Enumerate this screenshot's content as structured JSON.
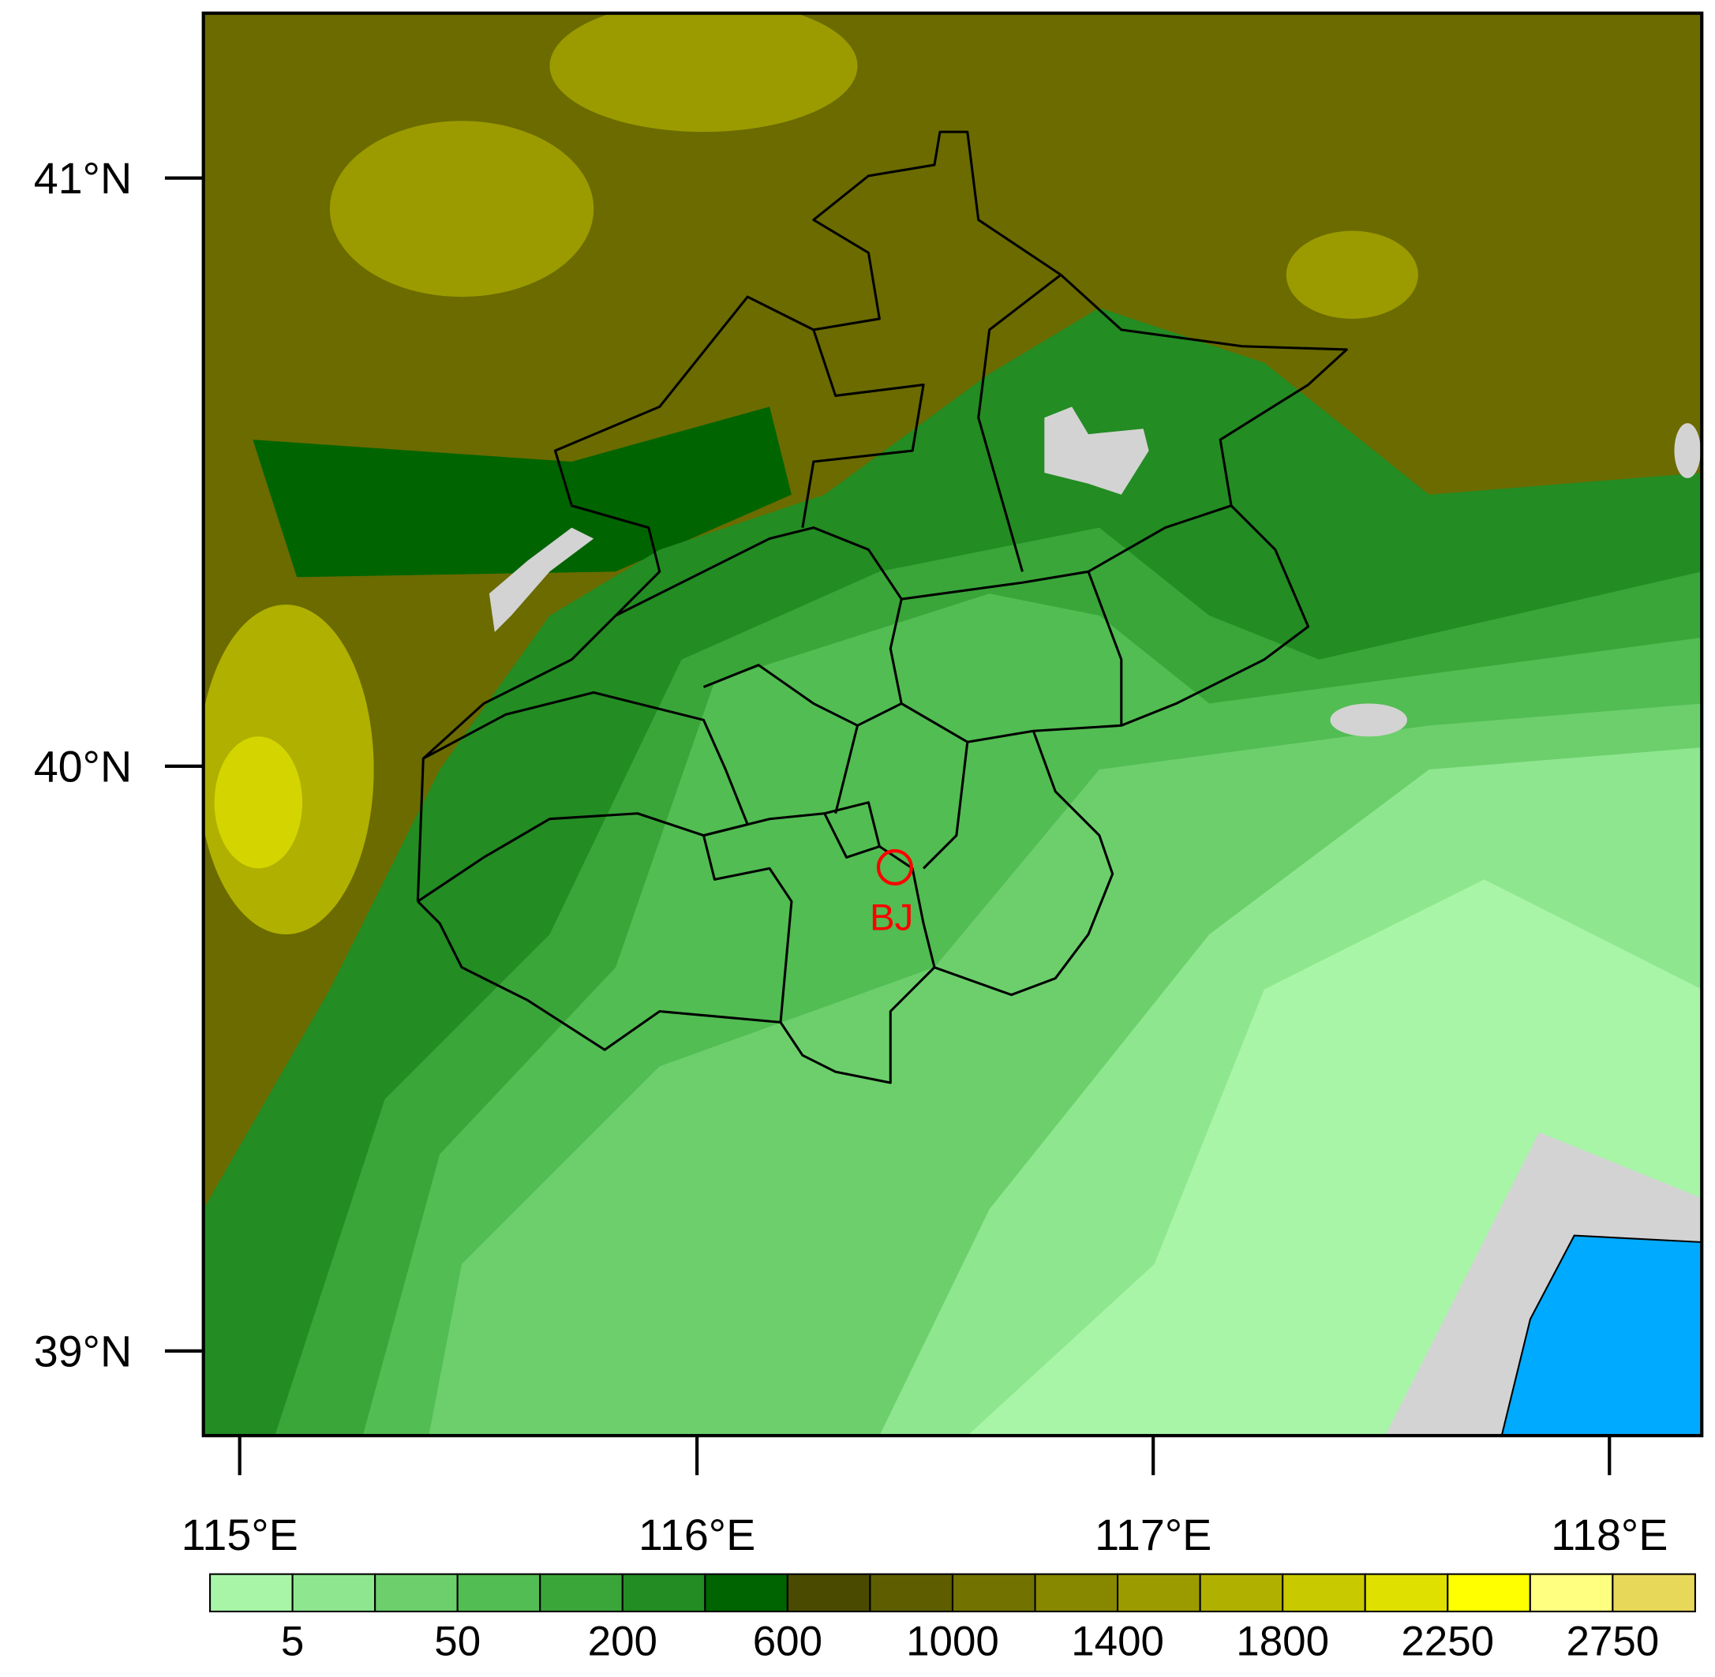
{
  "map": {
    "lat_ticks": [
      "41°N",
      "40°N",
      "39°N"
    ],
    "lon_ticks": [
      "115°E",
      "116°E",
      "117°E",
      "118°E"
    ],
    "station": {
      "label": "BJ"
    },
    "colorbar": {
      "colors": [
        "#a8f5a8",
        "#8ee68e",
        "#6ccf6c",
        "#52bd52",
        "#3aa63a",
        "#238c23",
        "#006400",
        "#4a4a00",
        "#5e5e00",
        "#727200",
        "#878700",
        "#9b9b00",
        "#b0b000",
        "#c9c900",
        "#e0e000",
        "#ffff00",
        "#ffff80",
        "#e8d85a"
      ],
      "ticks": [
        5,
        50,
        200,
        600,
        1000,
        1400,
        1800,
        2250,
        2750
      ]
    }
  }
}
